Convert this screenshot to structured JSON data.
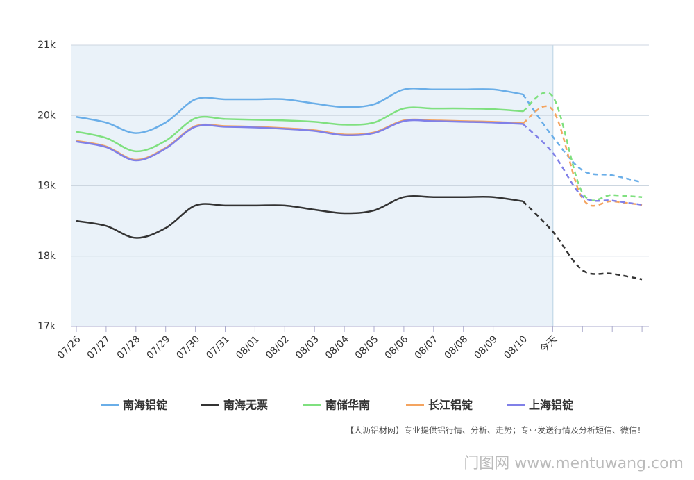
{
  "chart_data": {
    "type": "line",
    "categories": [
      "07/26",
      "07/27",
      "07/28",
      "07/29",
      "07/30",
      "07/31",
      "08/01",
      "08/02",
      "08/03",
      "08/04",
      "08/05",
      "08/06",
      "08/07",
      "08/08",
      "08/09",
      "08/10",
      "今天",
      null,
      null,
      null
    ],
    "series": [
      {
        "name": "南海铝锭",
        "color": "#6aaee8",
        "values": [
          19980,
          19900,
          19750,
          19900,
          20230,
          20230,
          20230,
          20230,
          20170,
          20120,
          20160,
          20370,
          20370,
          20370,
          20370,
          20300,
          19700,
          19220,
          19150,
          19050
        ]
      },
      {
        "name": "南海无票",
        "color": "#333333",
        "values": [
          18500,
          18430,
          18260,
          18400,
          18720,
          18720,
          18720,
          18720,
          18660,
          18610,
          18650,
          18840,
          18840,
          18840,
          18840,
          18780,
          18350,
          17800,
          17750,
          17670
        ]
      },
      {
        "name": "南储华南",
        "color": "#7fe07f",
        "values": [
          19770,
          19680,
          19490,
          19640,
          19960,
          19950,
          19940,
          19930,
          19910,
          19870,
          19900,
          20100,
          20100,
          20100,
          20090,
          20060,
          20270,
          18900,
          18870,
          18840
        ]
      },
      {
        "name": "长江铝锭",
        "color": "#f4a460",
        "values": [
          19640,
          19560,
          19370,
          19540,
          19850,
          19850,
          19840,
          19820,
          19790,
          19730,
          19760,
          19930,
          19930,
          19920,
          19910,
          19890,
          20080,
          18820,
          18780,
          18730
        ]
      },
      {
        "name": "上海铝锭",
        "color": "#8080e8",
        "values": [
          19630,
          19550,
          19360,
          19530,
          19840,
          19840,
          19830,
          19810,
          19780,
          19720,
          19750,
          19920,
          19920,
          19910,
          19900,
          19880,
          19470,
          18850,
          18790,
          18730
        ]
      }
    ],
    "ylim": [
      17000,
      21000
    ],
    "yticks": [
      {
        "value": 17000,
        "label": "17k"
      },
      {
        "value": 18000,
        "label": "18k"
      },
      {
        "value": 19000,
        "label": "19k"
      },
      {
        "value": 20000,
        "label": "20k"
      },
      {
        "value": 21000,
        "label": "21k"
      }
    ],
    "grid": true,
    "legend": "bottom",
    "footnote": "【大沥铝材网】专业提供铝行情、分析、走势；专业发送行情及分析短信、微信！",
    "watermark": "门图网 www.mentuwang.com"
  }
}
